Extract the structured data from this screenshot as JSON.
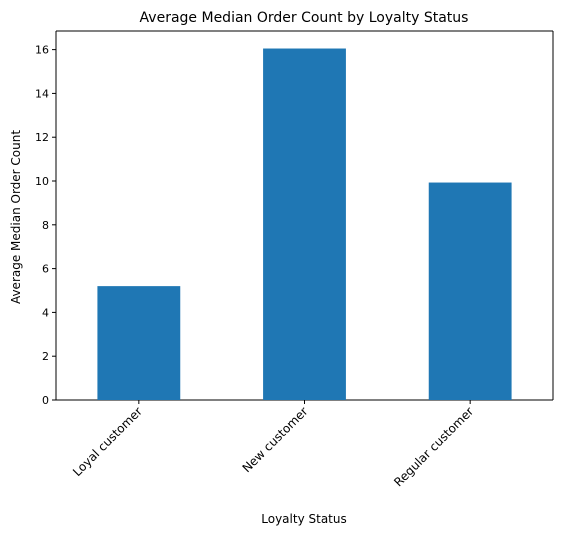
{
  "chart_data": {
    "type": "bar",
    "title": "Average Median Order Count by Loyalty Status",
    "xlabel": "Loyalty Status",
    "ylabel": "Average Median Order Count",
    "categories": [
      "Loyal customer",
      "New customer",
      "Regular customer"
    ],
    "values": [
      5.2,
      16.05,
      9.93
    ],
    "ylim": [
      0,
      16.85
    ],
    "yticks": [
      0,
      2,
      4,
      6,
      8,
      10,
      12,
      14,
      16
    ],
    "grid": false,
    "legend": "none",
    "colors": {
      "bar": "#1f77b4",
      "axis": "#000000",
      "background": "#ffffff"
    }
  }
}
